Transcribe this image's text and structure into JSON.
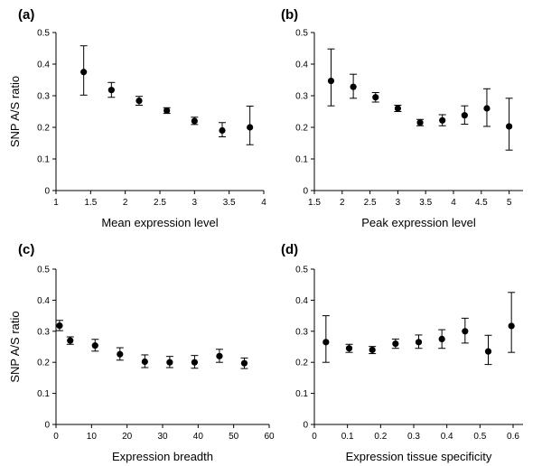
{
  "chart_data": [
    {
      "type": "scatter",
      "panel_label": "(a)",
      "xlabel": "Mean expression level",
      "ylabel": "SNP A/S ratio",
      "xlim": [
        1,
        4
      ],
      "ylim": [
        0,
        0.5
      ],
      "xticks": [
        1,
        1.5,
        2,
        2.5,
        3,
        3.5,
        4
      ],
      "xtick_labels": [
        "1",
        "1.5",
        "2",
        "2.5",
        "3",
        "3.5",
        "4"
      ],
      "yticks": [
        0,
        0.1,
        0.2,
        0.3,
        0.4,
        0.5
      ],
      "ytick_labels": [
        "0",
        "0.1",
        "0.2",
        "0.3",
        "0.4",
        "0.5"
      ],
      "points": [
        {
          "x": 1.4,
          "y": 0.375,
          "lo": 0.302,
          "hi": 0.458
        },
        {
          "x": 1.8,
          "y": 0.318,
          "lo": 0.295,
          "hi": 0.342
        },
        {
          "x": 2.2,
          "y": 0.284,
          "lo": 0.27,
          "hi": 0.298
        },
        {
          "x": 2.6,
          "y": 0.253,
          "lo": 0.244,
          "hi": 0.262
        },
        {
          "x": 3.0,
          "y": 0.22,
          "lo": 0.209,
          "hi": 0.232
        },
        {
          "x": 3.4,
          "y": 0.19,
          "lo": 0.17,
          "hi": 0.215
        },
        {
          "x": 3.8,
          "y": 0.2,
          "lo": 0.145,
          "hi": 0.267
        }
      ]
    },
    {
      "type": "scatter",
      "panel_label": "(b)",
      "xlabel": "Peak expression level",
      "ylabel": "",
      "xlim": [
        1.5,
        5.25
      ],
      "ylim": [
        0,
        0.5
      ],
      "xticks": [
        1.5,
        2,
        2.5,
        3,
        3.5,
        4,
        4.5,
        5
      ],
      "xtick_labels": [
        "1.5",
        "2",
        "2.5",
        "3",
        "3.5",
        "4",
        "4.5",
        "5"
      ],
      "yticks": [
        0,
        0.1,
        0.2,
        0.3,
        0.4,
        0.5
      ],
      "ytick_labels": [
        "0",
        "0.1",
        "0.2",
        "0.3",
        "0.4",
        "0.5"
      ],
      "points": [
        {
          "x": 1.8,
          "y": 0.347,
          "lo": 0.268,
          "hi": 0.448
        },
        {
          "x": 2.2,
          "y": 0.328,
          "lo": 0.292,
          "hi": 0.368
        },
        {
          "x": 2.6,
          "y": 0.295,
          "lo": 0.28,
          "hi": 0.31
        },
        {
          "x": 3.0,
          "y": 0.26,
          "lo": 0.25,
          "hi": 0.27
        },
        {
          "x": 3.4,
          "y": 0.215,
          "lo": 0.205,
          "hi": 0.225
        },
        {
          "x": 3.8,
          "y": 0.222,
          "lo": 0.205,
          "hi": 0.24
        },
        {
          "x": 4.2,
          "y": 0.238,
          "lo": 0.21,
          "hi": 0.268
        },
        {
          "x": 4.6,
          "y": 0.26,
          "lo": 0.203,
          "hi": 0.322
        },
        {
          "x": 5.0,
          "y": 0.203,
          "lo": 0.128,
          "hi": 0.292
        }
      ]
    },
    {
      "type": "scatter",
      "panel_label": "(c)",
      "xlabel": "Expression breadth",
      "ylabel": "SNP A/S ratio",
      "xlim": [
        0,
        60
      ],
      "ylim": [
        0,
        0.5
      ],
      "xticks": [
        0,
        10,
        20,
        30,
        40,
        50,
        60
      ],
      "xtick_labels": [
        "0",
        "10",
        "20",
        "30",
        "40",
        "50",
        "60"
      ],
      "yticks": [
        0,
        0.1,
        0.2,
        0.3,
        0.4,
        0.5
      ],
      "ytick_labels": [
        "0",
        "0.1",
        "0.2",
        "0.3",
        "0.4",
        "0.5"
      ],
      "points": [
        {
          "x": 1,
          "y": 0.318,
          "lo": 0.302,
          "hi": 0.335
        },
        {
          "x": 4,
          "y": 0.27,
          "lo": 0.258,
          "hi": 0.282
        },
        {
          "x": 11,
          "y": 0.254,
          "lo": 0.236,
          "hi": 0.274
        },
        {
          "x": 18,
          "y": 0.226,
          "lo": 0.207,
          "hi": 0.247
        },
        {
          "x": 25,
          "y": 0.202,
          "lo": 0.183,
          "hi": 0.224
        },
        {
          "x": 32,
          "y": 0.2,
          "lo": 0.183,
          "hi": 0.219
        },
        {
          "x": 39,
          "y": 0.2,
          "lo": 0.181,
          "hi": 0.222
        },
        {
          "x": 46,
          "y": 0.22,
          "lo": 0.2,
          "hi": 0.242
        },
        {
          "x": 53,
          "y": 0.197,
          "lo": 0.18,
          "hi": 0.214
        }
      ]
    },
    {
      "type": "scatter",
      "panel_label": "(d)",
      "xlabel": "Expression tissue specificity",
      "ylabel": "",
      "xlim": [
        0,
        0.63
      ],
      "ylim": [
        0,
        0.5
      ],
      "xticks": [
        0,
        0.1,
        0.2,
        0.3,
        0.4,
        0.5,
        0.6
      ],
      "xtick_labels": [
        "0",
        "0.1",
        "0.2",
        "0.3",
        "0.4",
        "0.5",
        "0.6"
      ],
      "yticks": [
        0,
        0.1,
        0.2,
        0.3,
        0.4,
        0.5
      ],
      "ytick_labels": [
        "0",
        "0.1",
        "0.2",
        "0.3",
        "0.4",
        "0.5"
      ],
      "points": [
        {
          "x": 0.035,
          "y": 0.265,
          "lo": 0.2,
          "hi": 0.35
        },
        {
          "x": 0.105,
          "y": 0.245,
          "lo": 0.232,
          "hi": 0.258
        },
        {
          "x": 0.175,
          "y": 0.24,
          "lo": 0.228,
          "hi": 0.251
        },
        {
          "x": 0.245,
          "y": 0.26,
          "lo": 0.245,
          "hi": 0.275
        },
        {
          "x": 0.315,
          "y": 0.265,
          "lo": 0.245,
          "hi": 0.288
        },
        {
          "x": 0.385,
          "y": 0.275,
          "lo": 0.245,
          "hi": 0.305
        },
        {
          "x": 0.455,
          "y": 0.3,
          "lo": 0.262,
          "hi": 0.342
        },
        {
          "x": 0.525,
          "y": 0.235,
          "lo": 0.193,
          "hi": 0.287
        },
        {
          "x": 0.595,
          "y": 0.317,
          "lo": 0.232,
          "hi": 0.425
        }
      ]
    }
  ]
}
